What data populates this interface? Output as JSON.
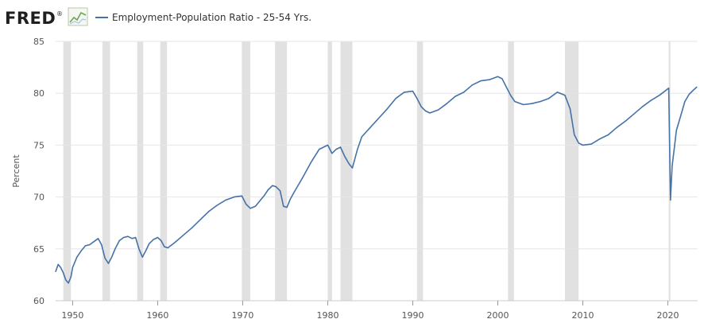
{
  "header": {
    "logo_text": "FRED",
    "logo_registered": "®"
  },
  "chart_data": {
    "type": "line",
    "title": "",
    "ylabel": "Percent",
    "xlabel": "",
    "xlim": [
      1948.0,
      2023.5
    ],
    "ylim": [
      60,
      85
    ],
    "grid": true,
    "legend_position": "top-left",
    "y_ticks": [
      60,
      65,
      70,
      75,
      80,
      85
    ],
    "x_ticks": [
      1950,
      1960,
      1970,
      1980,
      1990,
      2000,
      2010,
      2020
    ],
    "recession_bands": [
      [
        1948.9,
        1949.8
      ],
      [
        1953.5,
        1954.4
      ],
      [
        1957.6,
        1958.3
      ],
      [
        1960.3,
        1961.1
      ],
      [
        1969.9,
        1970.9
      ],
      [
        1973.8,
        1975.2
      ],
      [
        1980.0,
        1980.5
      ],
      [
        1981.5,
        1982.9
      ],
      [
        1990.5,
        1991.2
      ],
      [
        2001.2,
        2001.9
      ],
      [
        2007.9,
        2009.5
      ],
      [
        2020.1,
        2020.3
      ]
    ],
    "series": [
      {
        "name": "Employment-Population Ratio - 25-54 Yrs.",
        "color": "#4572a7",
        "x": [
          1948.0,
          1948.3,
          1948.6,
          1948.9,
          1949.2,
          1949.5,
          1949.8,
          1950.0,
          1950.5,
          1951.0,
          1951.5,
          1952.0,
          1952.5,
          1953.0,
          1953.4,
          1953.8,
          1954.2,
          1954.6,
          1955.0,
          1955.5,
          1956.0,
          1956.5,
          1957.0,
          1957.4,
          1957.8,
          1958.2,
          1958.6,
          1959.0,
          1959.5,
          1960.0,
          1960.4,
          1960.8,
          1961.2,
          1962.0,
          1963.0,
          1964.0,
          1965.0,
          1966.0,
          1967.0,
          1968.0,
          1969.0,
          1969.9,
          1970.4,
          1970.9,
          1971.5,
          1972.0,
          1972.5,
          1973.0,
          1973.5,
          1973.9,
          1974.4,
          1974.8,
          1975.2,
          1975.6,
          1976.0,
          1977.0,
          1978.0,
          1979.0,
          1980.0,
          1980.5,
          1981.0,
          1981.5,
          1982.0,
          1982.5,
          1982.9,
          1983.5,
          1984.0,
          1985.0,
          1986.0,
          1987.0,
          1988.0,
          1989.0,
          1990.0,
          1990.5,
          1991.0,
          1991.5,
          1992.0,
          1993.0,
          1994.0,
          1995.0,
          1996.0,
          1997.0,
          1998.0,
          1999.0,
          2000.0,
          2000.5,
          2001.0,
          2001.5,
          2002.0,
          2003.0,
          2004.0,
          2005.0,
          2006.0,
          2007.0,
          2007.9,
          2008.5,
          2009.0,
          2009.5,
          2010.0,
          2011.0,
          2012.0,
          2013.0,
          2014.0,
          2015.0,
          2016.0,
          2017.0,
          2018.0,
          2019.0,
          2019.8,
          2020.1,
          2020.3,
          2020.5,
          2020.8,
          2021.0,
          2021.5,
          2022.0,
          2022.5,
          2023.0,
          2023.4
        ],
        "values": [
          62.8,
          63.5,
          63.2,
          62.7,
          62.0,
          61.7,
          62.3,
          63.2,
          64.2,
          64.8,
          65.3,
          65.4,
          65.7,
          66.0,
          65.4,
          64.1,
          63.6,
          64.2,
          65.0,
          65.8,
          66.1,
          66.2,
          66.0,
          66.1,
          65.0,
          64.2,
          64.8,
          65.5,
          65.9,
          66.1,
          65.8,
          65.2,
          65.1,
          65.6,
          66.3,
          67.0,
          67.8,
          68.6,
          69.2,
          69.7,
          70.0,
          70.1,
          69.3,
          68.9,
          69.1,
          69.6,
          70.1,
          70.7,
          71.1,
          71.0,
          70.6,
          69.1,
          69.0,
          69.8,
          70.4,
          71.8,
          73.3,
          74.6,
          75.0,
          74.2,
          74.6,
          74.8,
          73.9,
          73.2,
          72.8,
          74.6,
          75.8,
          76.7,
          77.6,
          78.5,
          79.5,
          80.1,
          80.2,
          79.5,
          78.7,
          78.3,
          78.1,
          78.4,
          79.0,
          79.7,
          80.1,
          80.8,
          81.2,
          81.3,
          81.6,
          81.4,
          80.6,
          79.8,
          79.2,
          78.9,
          79.0,
          79.2,
          79.5,
          80.1,
          79.8,
          78.5,
          76.0,
          75.2,
          75.0,
          75.1,
          75.6,
          76.0,
          76.7,
          77.3,
          78.0,
          78.7,
          79.3,
          79.8,
          80.3,
          80.5,
          69.7,
          73.0,
          75.0,
          76.4,
          77.8,
          79.2,
          79.9,
          80.3,
          80.6
        ]
      }
    ]
  }
}
